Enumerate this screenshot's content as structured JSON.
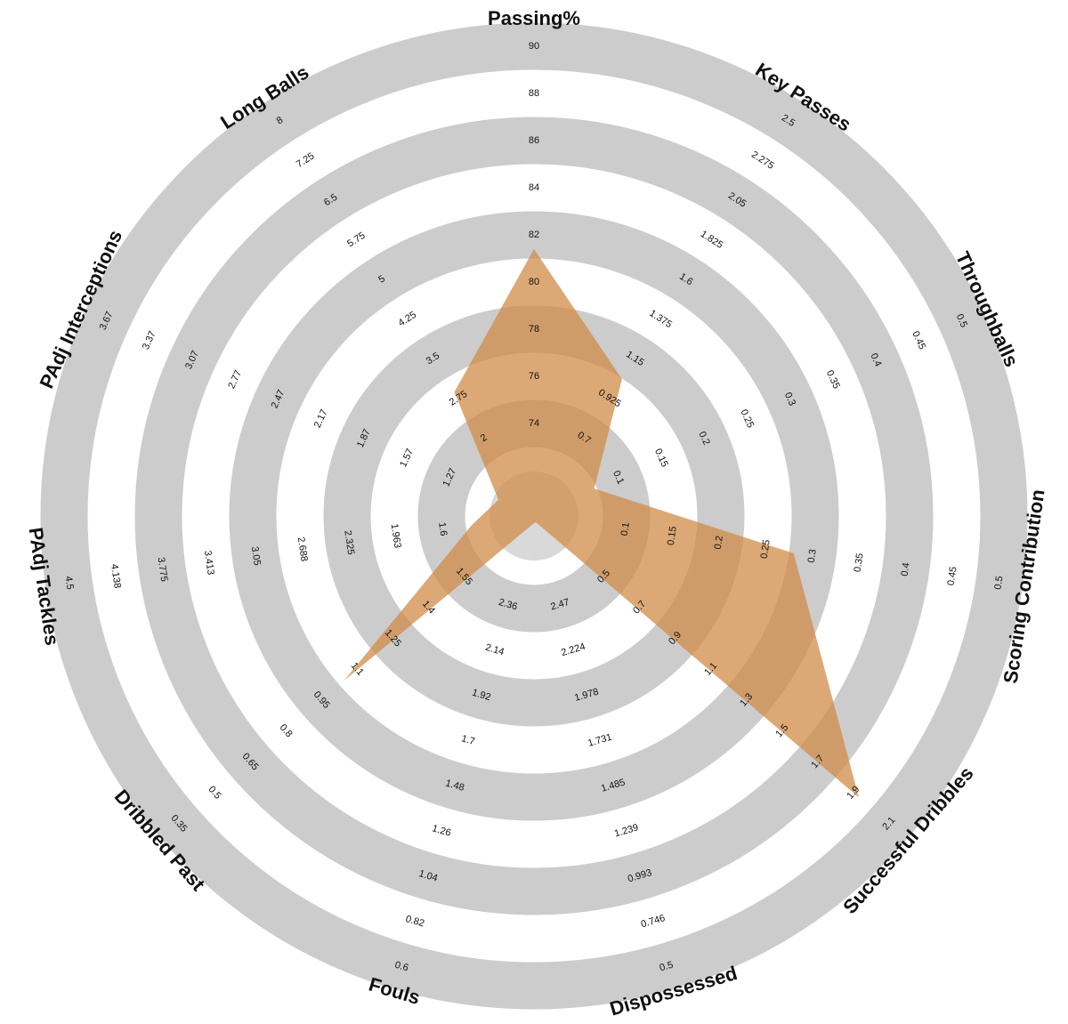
{
  "chart_data": {
    "type": "radar",
    "color": "#d08c48",
    "band_color": "#cccccc",
    "axes": [
      {
        "label": "Passing%",
        "ticks": [
          74,
          76,
          78,
          80,
          82,
          84,
          86,
          88,
          90
        ]
      },
      {
        "label": "Key Passes",
        "ticks": [
          0.7,
          0.925,
          1.15,
          1.375,
          1.6,
          1.825,
          2.05,
          2.275,
          2.5
        ]
      },
      {
        "label": "Throughballs",
        "ticks": [
          0.1,
          0.15,
          0.2,
          0.25,
          0.3,
          0.35,
          0.4,
          0.45,
          0.5
        ]
      },
      {
        "label": "Scoring Contribution",
        "ticks": [
          0.1,
          0.15,
          0.2,
          0.25,
          0.3,
          0.35,
          0.4,
          0.45,
          0.5
        ]
      },
      {
        "label": "Successful Dribbles",
        "ticks": [
          0.5,
          0.7,
          0.9,
          1.1,
          1.3,
          1.5,
          1.7,
          1.9,
          2.1
        ]
      },
      {
        "label": "Dispossessed",
        "ticks": [
          2.47,
          2.224,
          1.978,
          1.731,
          1.485,
          1.239,
          0.993,
          0.746,
          0.5
        ]
      },
      {
        "label": "Fouls",
        "ticks": [
          2.36,
          2.14,
          1.92,
          1.7,
          1.48,
          1.26,
          1.04,
          0.82,
          0.6
        ]
      },
      {
        "label": "Dribbled Past",
        "ticks": [
          1.55,
          1.4,
          1.25,
          1.1,
          0.95,
          0.8,
          0.65,
          0.5,
          0.35
        ]
      },
      {
        "label": "PAdj Tackles",
        "ticks": [
          1.6,
          1.963,
          2.325,
          2.688,
          3.05,
          3.413,
          3.775,
          4.138,
          4.5
        ]
      },
      {
        "label": "PAdj Interceptions",
        "ticks": [
          1.27,
          1.57,
          1.87,
          2.17,
          2.47,
          2.77,
          3.07,
          3.37,
          3.67
        ]
      },
      {
        "label": "Long Balls",
        "ticks": [
          2,
          2.75,
          3.5,
          4.25,
          5,
          5.75,
          6.5,
          7.25,
          8
        ]
      }
    ],
    "values": [
      81.4,
      1.035,
      0.072,
      0.28,
      1.93,
      2.92,
      2.745,
      1.045,
      1.37,
      0.93,
      2.87
    ]
  }
}
